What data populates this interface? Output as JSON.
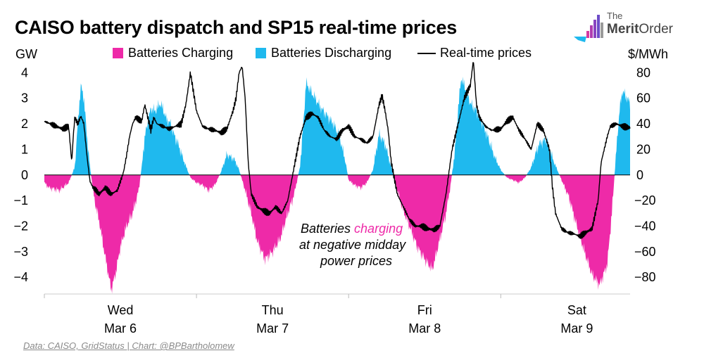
{
  "title": "CAISO battery dispatch and SP15 real-time prices",
  "logo": {
    "small": "The",
    "name_part1": "Merit",
    "name_part2": "Order"
  },
  "colors": {
    "charging": "#ee2aa8",
    "discharging": "#1fb9ee",
    "price": "#000000"
  },
  "source": "Data: CAISO, GridStatus | Chart: @BPBartholomew",
  "chart_data": {
    "type": "area",
    "title": "CAISO battery dispatch and SP15 real-time prices",
    "ylabel_left": "GW",
    "ylabel_right": "$/MWh",
    "ylim_left": [
      -4.6,
      4.45
    ],
    "ylim_right": [
      -92,
      89
    ],
    "yticks_left": [
      -4,
      -3,
      -2,
      -1,
      0,
      1,
      2,
      3,
      4
    ],
    "yticks_right": [
      -80,
      -60,
      -40,
      -20,
      0,
      20,
      40,
      60,
      80
    ],
    "xlim_days": [
      0,
      3.85
    ],
    "x_tick_labels": [
      {
        "day": "Wed",
        "date": "Mar  6",
        "x": 0.5
      },
      {
        "day": "Thu",
        "date": "Mar  7",
        "x": 1.5
      },
      {
        "day": "Fri",
        "date": "Mar  8",
        "x": 2.5
      },
      {
        "day": "Sat",
        "date": "Mar  9",
        "x": 3.5
      }
    ],
    "legend": [
      "Batteries Charging",
      "Batteries Discharging",
      "Real-time prices"
    ],
    "annotation": {
      "line1_before": "Batteries ",
      "line1_highlight": "charging",
      "line2": "at negative midday",
      "line3": "power prices"
    },
    "series": [
      {
        "name": "Battery dispatch (GW)",
        "axis": "left",
        "x": [
          0,
          0.03,
          0.1,
          0.16,
          0.2,
          0.22,
          0.24,
          0.26,
          0.28,
          0.3,
          0.33,
          0.36,
          0.4,
          0.44,
          0.47,
          0.5,
          0.54,
          0.58,
          0.62,
          0.64,
          0.66,
          0.7,
          0.73,
          0.76,
          0.78,
          0.8,
          0.83,
          0.85,
          0.88,
          0.92,
          0.96,
          1.0,
          1.04,
          1.08,
          1.12,
          1.16,
          1.2,
          1.25,
          1.28,
          1.32,
          1.36,
          1.4,
          1.45,
          1.5,
          1.55,
          1.6,
          1.64,
          1.68,
          1.7,
          1.72,
          1.75,
          1.78,
          1.82,
          1.86,
          1.9,
          1.94,
          1.98,
          2.0,
          2.04,
          2.08,
          2.12,
          2.16,
          2.2,
          2.24,
          2.28,
          2.32,
          2.36,
          2.4,
          2.45,
          2.5,
          2.55,
          2.6,
          2.64,
          2.67,
          2.7,
          2.72,
          2.74,
          2.76,
          2.78,
          2.8,
          2.84,
          2.88,
          2.92,
          2.96,
          3.0,
          3.04,
          3.08,
          3.12,
          3.16,
          3.2,
          3.25,
          3.3,
          3.35,
          3.4,
          3.45,
          3.5,
          3.55,
          3.6,
          3.65,
          3.7,
          3.73,
          3.76,
          3.78,
          3.8,
          3.85
        ],
        "values": [
          -0.3,
          -0.5,
          -0.6,
          -0.3,
          0.3,
          2.0,
          3.5,
          3.0,
          1.5,
          0.3,
          -1.0,
          -1.8,
          -3.2,
          -4.5,
          -3.8,
          -2.8,
          -2.0,
          -1.5,
          -0.6,
          0.3,
          1.5,
          2.6,
          2.5,
          2.8,
          2.6,
          2.2,
          2.0,
          1.6,
          1.2,
          0.5,
          -0.1,
          -0.3,
          -0.4,
          -0.6,
          -0.4,
          0.1,
          0.8,
          0.6,
          0.2,
          -0.6,
          -1.5,
          -2.6,
          -3.3,
          -3.0,
          -2.5,
          -1.5,
          -0.8,
          0.3,
          1.8,
          3.6,
          3.3,
          3.0,
          2.6,
          2.3,
          2.0,
          1.5,
          0.5,
          -0.2,
          -0.4,
          -0.5,
          -0.3,
          0.2,
          1.6,
          1.2,
          0.3,
          -0.6,
          -1.4,
          -2.0,
          -2.8,
          -3.3,
          -3.7,
          -2.5,
          -1.5,
          -0.4,
          1.0,
          2.6,
          3.8,
          3.5,
          3.2,
          2.8,
          2.5,
          2.0,
          1.4,
          0.7,
          0.2,
          -0.1,
          -0.2,
          -0.3,
          -0.1,
          0.3,
          1.2,
          1.4,
          0.5,
          -0.2,
          -0.9,
          -2.0,
          -3.0,
          -3.9,
          -4.3,
          -3.5,
          -1.5,
          1.0,
          2.5,
          3.3,
          2.8
        ]
      },
      {
        "name": "Real-time prices ($/MWh)",
        "axis": "right",
        "x": [
          0,
          0.04,
          0.08,
          0.12,
          0.16,
          0.18,
          0.19,
          0.2,
          0.22,
          0.24,
          0.26,
          0.28,
          0.3,
          0.32,
          0.34,
          0.36,
          0.4,
          0.44,
          0.48,
          0.5,
          0.52,
          0.54,
          0.56,
          0.58,
          0.6,
          0.64,
          0.66,
          0.68,
          0.7,
          0.72,
          0.74,
          0.78,
          0.82,
          0.86,
          0.9,
          0.92,
          0.93,
          0.96,
          1.0,
          1.04,
          1.08,
          1.12,
          1.16,
          1.2,
          1.24,
          1.26,
          1.28,
          1.3,
          1.32,
          1.34,
          1.36,
          1.4,
          1.44,
          1.48,
          1.52,
          1.56,
          1.6,
          1.64,
          1.68,
          1.72,
          1.76,
          1.8,
          1.84,
          1.88,
          1.92,
          1.96,
          2.0,
          2.04,
          2.08,
          2.12,
          2.16,
          2.2,
          2.22,
          2.24,
          2.26,
          2.28,
          2.32,
          2.36,
          2.4,
          2.44,
          2.48,
          2.52,
          2.56,
          2.6,
          2.64,
          2.68,
          2.72,
          2.76,
          2.8,
          2.82,
          2.84,
          2.86,
          2.9,
          2.94,
          3.0,
          3.04,
          3.08,
          3.12,
          3.16,
          3.2,
          3.24,
          3.28,
          3.32,
          3.34,
          3.36,
          3.4,
          3.44,
          3.48,
          3.52,
          3.56,
          3.6,
          3.64,
          3.66,
          3.68,
          3.7,
          3.72,
          3.76,
          3.8,
          3.85
        ],
        "values": [
          42,
          40,
          38,
          36,
          38,
          10,
          30,
          45,
          40,
          46,
          40,
          15,
          -5,
          -10,
          -12,
          -15,
          -10,
          -15,
          -12,
          -5,
          2,
          15,
          30,
          40,
          45,
          42,
          55,
          45,
          35,
          45,
          40,
          38,
          36,
          38,
          40,
          50,
          55,
          80,
          50,
          38,
          36,
          35,
          33,
          36,
          50,
          60,
          80,
          85,
          60,
          10,
          -15,
          -25,
          -28,
          -30,
          -25,
          -30,
          -20,
          5,
          30,
          45,
          48,
          45,
          35,
          30,
          28,
          35,
          38,
          30,
          28,
          25,
          30,
          55,
          62,
          50,
          35,
          10,
          -15,
          -25,
          -35,
          -40,
          -40,
          -42,
          -43,
          -40,
          -15,
          20,
          40,
          60,
          70,
          90,
          55,
          45,
          38,
          35,
          36,
          42,
          45,
          35,
          28,
          20,
          40,
          35,
          20,
          -10,
          -30,
          -42,
          -45,
          -46,
          -48,
          -45,
          -42,
          -20,
          10,
          20,
          30,
          38,
          40,
          38,
          37
        ]
      }
    ]
  }
}
